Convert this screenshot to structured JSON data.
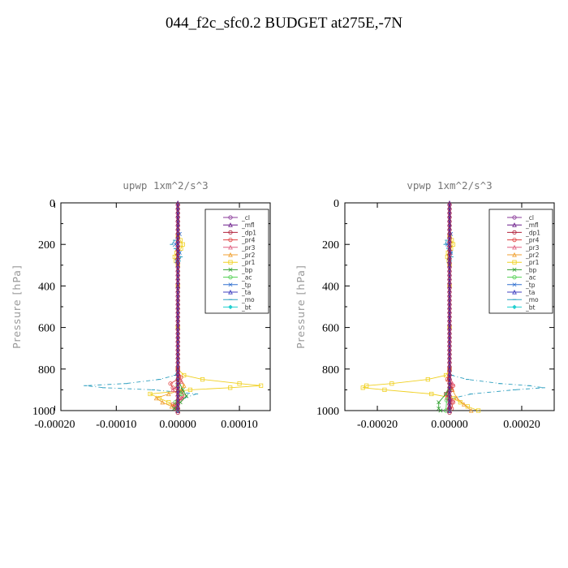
{
  "title": "044_f2c_sfc0.2  BUDGET at275E,-7N",
  "legend_labels": [
    "_cl",
    "_mfl",
    "_dp1",
    "_pr4",
    "_pr3",
    "_pr2",
    "_pr1",
    "_bp",
    "_ac",
    "_tp",
    "_ta",
    "_mo",
    "_bt"
  ],
  "colors": {
    "_cl": "#8a3a9a",
    "_mfl": "#6a1a8a",
    "_dp1": "#b0203a",
    "_pr4": "#e04040",
    "_pr3": "#e06080",
    "_pr2": "#f0a030",
    "_pr1": "#f0d020",
    "_bp": "#30a030",
    "_ac": "#50d050",
    "_tp": "#3070d0",
    "_ta": "#4040c0",
    "_mo": "#30a0c0",
    "_bt": "#20d0d0"
  },
  "chart_data": [
    {
      "type": "line",
      "title": "upwp   1xm^2/s^3",
      "ylabel": "Pressure [hPa]",
      "xlabel": "",
      "xlim": [
        -0.00019,
        0.00015
      ],
      "ylim": [
        1000,
        0
      ],
      "xticks": [
        "-0.00020",
        "-0.00010",
        "0.00000",
        "0.00010"
      ],
      "xtick_values": [
        -0.0002,
        -0.0001,
        0,
        0.0001
      ],
      "yticks": [
        "0",
        "200",
        "400",
        "600",
        "800",
        "1000"
      ],
      "ytick_values": [
        0,
        200,
        400,
        600,
        800,
        1000
      ],
      "legend_placement": "top-right",
      "series": [
        {
          "name": "_mo",
          "y": [
            0,
            160,
            180,
            200,
            220,
            240,
            260,
            280,
            300,
            400,
            600,
            800,
            830,
            850,
            870,
            880,
            890,
            900,
            920,
            940,
            960,
            980,
            1000
          ],
          "x": [
            0,
            0,
            -5e-06,
            -1e-05,
            -4e-06,
            2e-06,
            5e-06,
            2e-06,
            0,
            0,
            0,
            0,
            -4e-06,
            -3e-05,
            -8.5e-05,
            -0.00015,
            -0.00012,
            -4e-05,
            3e-05,
            1e-05,
            0,
            0,
            0
          ]
        },
        {
          "name": "_pr1",
          "y": [
            0,
            160,
            180,
            200,
            220,
            240,
            260,
            280,
            300,
            400,
            600,
            800,
            830,
            850,
            870,
            880,
            890,
            900,
            920,
            940,
            960,
            980,
            1000
          ],
          "x": [
            0,
            0,
            4e-06,
            8e-06,
            5e-06,
            -2e-06,
            -5e-06,
            -3e-06,
            0,
            0,
            0,
            0,
            1e-05,
            4e-05,
            0.0001,
            0.000135,
            8.5e-05,
            2e-05,
            -4.5e-05,
            -3e-05,
            -1.5e-05,
            -5e-06,
            0
          ]
        },
        {
          "name": "_pr2",
          "y": [
            0,
            800,
            850,
            880,
            900,
            920,
            940,
            960,
            980,
            1000
          ],
          "x": [
            0,
            0,
            4e-06,
            1e-05,
            6e-06,
            -1.5e-05,
            -3.5e-05,
            -2.5e-05,
            -1e-05,
            0
          ]
        },
        {
          "name": "_pr4",
          "y": [
            0,
            800,
            840,
            870,
            890,
            910,
            930,
            950,
            970,
            990,
            1000
          ],
          "x": [
            0,
            0,
            5e-06,
            -1.2e-05,
            -8e-06,
            6e-06,
            1e-05,
            4e-06,
            -8e-06,
            -4e-06,
            0
          ]
        },
        {
          "name": "_pr3",
          "y": [
            0,
            820,
            860,
            900,
            940,
            980,
            1000
          ],
          "x": [
            0,
            0,
            6e-06,
            -8e-06,
            6e-06,
            -4e-06,
            0
          ]
        },
        {
          "name": "_bp",
          "y": [
            0,
            850,
            900,
            930,
            960,
            990,
            1000
          ],
          "x": [
            0,
            0,
            8e-06,
            1.4e-05,
            4e-06,
            -6e-06,
            0
          ]
        },
        {
          "name": "_ac",
          "y": [
            0,
            880,
            920,
            960,
            1000
          ],
          "x": [
            0,
            0,
            6e-06,
            -4e-06,
            0
          ]
        },
        {
          "name": "_tp",
          "y": [
            0,
            150,
            200,
            240,
            280,
            300
          ],
          "x": [
            0,
            3e-06,
            -4e-06,
            3e-06,
            -2e-06,
            0
          ]
        },
        {
          "name": "_cl",
          "y": [
            0,
            1000
          ],
          "x": [
            0,
            0
          ]
        },
        {
          "name": "_mfl",
          "y": [
            0,
            1000
          ],
          "x": [
            0,
            0
          ]
        },
        {
          "name": "_dp1",
          "y": [
            0,
            1000
          ],
          "x": [
            0,
            0
          ]
        },
        {
          "name": "_ta",
          "y": [
            0,
            1000
          ],
          "x": [
            0,
            0
          ]
        },
        {
          "name": "_bt",
          "y": [
            0,
            1000
          ],
          "x": [
            0,
            0
          ]
        }
      ]
    },
    {
      "type": "line",
      "title": "vpwp   1xm^2/s^3",
      "ylabel": "Pressure [hPa]",
      "xlabel": "",
      "xlim": [
        -0.00029,
        0.00029
      ],
      "ylim": [
        1000,
        0
      ],
      "xticks": [
        "-0.00020",
        "0.00000",
        "0.00020"
      ],
      "xtick_values": [
        -0.0002,
        0,
        0.0002
      ],
      "yticks": [
        "0",
        "200",
        "400",
        "600",
        "800",
        "1000"
      ],
      "ytick_values": [
        0,
        200,
        400,
        600,
        800,
        1000
      ],
      "legend_placement": "top-right",
      "series": [
        {
          "name": "_mo",
          "y": [
            0,
            160,
            180,
            200,
            220,
            240,
            260,
            280,
            300,
            400,
            600,
            800,
            830,
            850,
            870,
            880,
            890,
            900,
            920,
            940,
            960,
            980,
            1000
          ],
          "x": [
            0,
            0,
            -8e-06,
            -1.2e-05,
            -4e-06,
            4e-06,
            6e-06,
            2e-06,
            0,
            0,
            0,
            0,
            6e-06,
            5e-05,
            0.00014,
            0.00022,
            0.00026,
            0.00018,
            6e-05,
            1e-05,
            0,
            0,
            0
          ]
        },
        {
          "name": "_pr1",
          "y": [
            0,
            160,
            180,
            200,
            220,
            240,
            260,
            280,
            300,
            400,
            600,
            800,
            830,
            850,
            870,
            880,
            890,
            900,
            920,
            940,
            960,
            980,
            1000
          ],
          "x": [
            0,
            0,
            6e-06,
            1e-05,
            4e-06,
            -4e-06,
            -6e-06,
            -2e-06,
            0,
            0,
            0,
            0,
            -1e-05,
            -6e-05,
            -0.00016,
            -0.00023,
            -0.00024,
            -0.00018,
            -5e-05,
            1e-05,
            3e-05,
            5e-05,
            8e-05
          ]
        },
        {
          "name": "_pr2",
          "y": [
            0,
            800,
            850,
            900,
            940,
            970,
            1000
          ],
          "x": [
            0,
            0,
            -4e-06,
            8e-06,
            2e-05,
            4e-05,
            6e-05
          ]
        },
        {
          "name": "_pr4",
          "y": [
            0,
            800,
            850,
            880,
            900,
            920,
            940,
            960,
            990,
            1000
          ],
          "x": [
            0,
            0,
            -6e-06,
            1e-05,
            6e-06,
            -1e-05,
            -6e-06,
            1e-05,
            6e-06,
            0
          ]
        },
        {
          "name": "_pr3",
          "y": [
            0,
            820,
            870,
            910,
            950,
            990,
            1000
          ],
          "x": [
            0,
            0,
            8e-06,
            -6e-06,
            8e-06,
            -4e-06,
            0
          ]
        },
        {
          "name": "_bp",
          "y": [
            0,
            880,
            920,
            960,
            990,
            1000
          ],
          "x": [
            0,
            0,
            -1e-05,
            -3e-05,
            -3e-05,
            -2.5e-05
          ]
        },
        {
          "name": "_ac",
          "y": [
            0,
            900,
            950,
            1000
          ],
          "x": [
            0,
            0,
            -8e-06,
            -1e-05
          ]
        },
        {
          "name": "_tp",
          "y": [
            0,
            150,
            200,
            240,
            280,
            300
          ],
          "x": [
            0,
            4e-06,
            -6e-06,
            4e-06,
            -2e-06,
            0
          ]
        },
        {
          "name": "_cl",
          "y": [
            0,
            1000
          ],
          "x": [
            0,
            0
          ]
        },
        {
          "name": "_mfl",
          "y": [
            0,
            1000
          ],
          "x": [
            0,
            0
          ]
        },
        {
          "name": "_dp1",
          "y": [
            0,
            1000
          ],
          "x": [
            0,
            0
          ]
        },
        {
          "name": "_ta",
          "y": [
            0,
            1000
          ],
          "x": [
            0,
            0
          ]
        },
        {
          "name": "_bt",
          "y": [
            0,
            1000
          ],
          "x": [
            0,
            0
          ]
        }
      ]
    }
  ]
}
